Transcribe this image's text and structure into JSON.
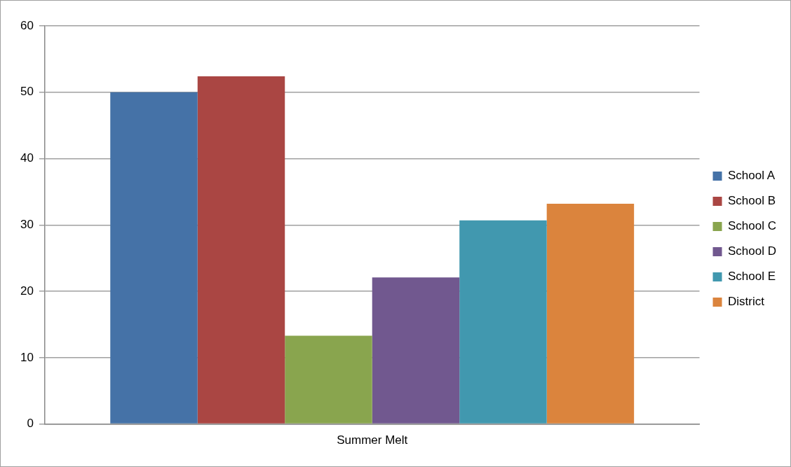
{
  "chart_data": {
    "type": "bar",
    "categories": [
      "Summer Melt"
    ],
    "series": [
      {
        "name": "School A",
        "color": "#4572a7",
        "values": [
          50.0
        ]
      },
      {
        "name": "School B",
        "color": "#aa4643",
        "values": [
          52.4
        ]
      },
      {
        "name": "School C",
        "color": "#89a54e",
        "values": [
          13.3
        ]
      },
      {
        "name": "School D",
        "color": "#71588f",
        "values": [
          22.1
        ]
      },
      {
        "name": "School E",
        "color": "#4198af",
        "values": [
          30.7
        ]
      },
      {
        "name": "District",
        "color": "#db843d",
        "values": [
          33.2
        ]
      }
    ],
    "ylim": [
      0,
      60
    ],
    "yticks": [
      0,
      10,
      20,
      30,
      40,
      50,
      60
    ],
    "grid": "y",
    "legend": "right"
  }
}
